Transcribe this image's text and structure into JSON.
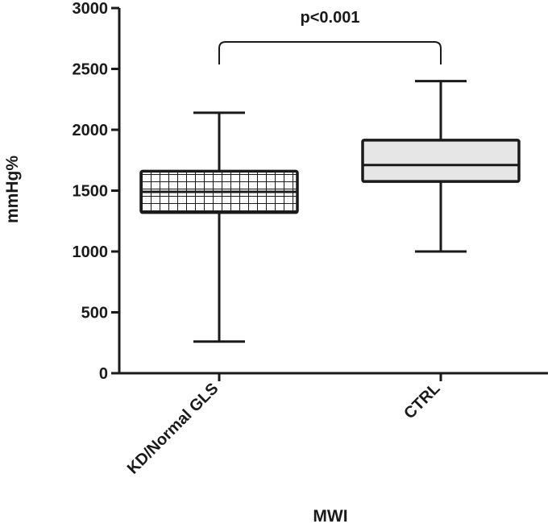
{
  "chart_data": {
    "type": "box",
    "categories": [
      "KD/Normal GLS",
      "CTRL"
    ],
    "series": [
      {
        "category": "KD/Normal GLS",
        "min": 260,
        "q1": 1320,
        "median": 1490,
        "q3": 1660,
        "max": 2140,
        "fill": "hatched-grid"
      },
      {
        "category": "CTRL",
        "min": 1000,
        "q1": 1575,
        "median": 1710,
        "q3": 1915,
        "max": 2400,
        "fill": "#e6e6e6"
      }
    ],
    "xlabel": "MWI",
    "ylabel": "mmHg%",
    "ylim": [
      0,
      3000
    ],
    "yticks": [
      0,
      500,
      1000,
      1500,
      2000,
      2500,
      3000
    ],
    "annotation": {
      "text": "p<0.001",
      "between": [
        "KD/Normal GLS",
        "CTRL"
      ]
    },
    "grid": false
  }
}
